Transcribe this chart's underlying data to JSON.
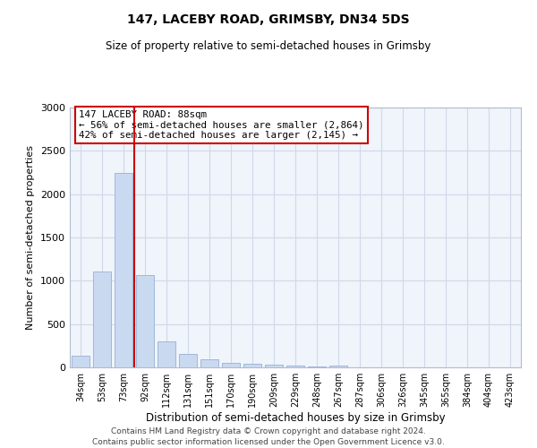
{
  "title": "147, LACEBY ROAD, GRIMSBY, DN34 5DS",
  "subtitle": "Size of property relative to semi-detached houses in Grimsby",
  "xlabel": "Distribution of semi-detached houses by size in Grimsby",
  "ylabel": "Number of semi-detached properties",
  "categories": [
    "34sqm",
    "53sqm",
    "73sqm",
    "92sqm",
    "112sqm",
    "131sqm",
    "151sqm",
    "170sqm",
    "190sqm",
    "209sqm",
    "229sqm",
    "248sqm",
    "267sqm",
    "287sqm",
    "306sqm",
    "326sqm",
    "345sqm",
    "365sqm",
    "384sqm",
    "404sqm",
    "423sqm"
  ],
  "values": [
    130,
    1105,
    2240,
    1070,
    295,
    155,
    92,
    55,
    40,
    28,
    20,
    15,
    22,
    0,
    0,
    0,
    0,
    0,
    0,
    0,
    0
  ],
  "bar_color": "#c9d9f0",
  "bar_edge_color": "#a0b8d8",
  "property_line_label": "147 LACEBY ROAD: 88sqm",
  "annotation_line1": "← 56% of semi-detached houses are smaller (2,864)",
  "annotation_line2": "42% of semi-detached houses are larger (2,145) →",
  "annotation_box_color": "#ffffff",
  "annotation_box_edge": "#cc0000",
  "property_line_color": "#cc0000",
  "ylim": [
    0,
    3000
  ],
  "yticks": [
    0,
    500,
    1000,
    1500,
    2000,
    2500,
    3000
  ],
  "grid_color": "#d0d8e8",
  "bg_color": "#f0f4fb",
  "footer1": "Contains HM Land Registry data © Crown copyright and database right 2024.",
  "footer2": "Contains public sector information licensed under the Open Government Licence v3.0."
}
